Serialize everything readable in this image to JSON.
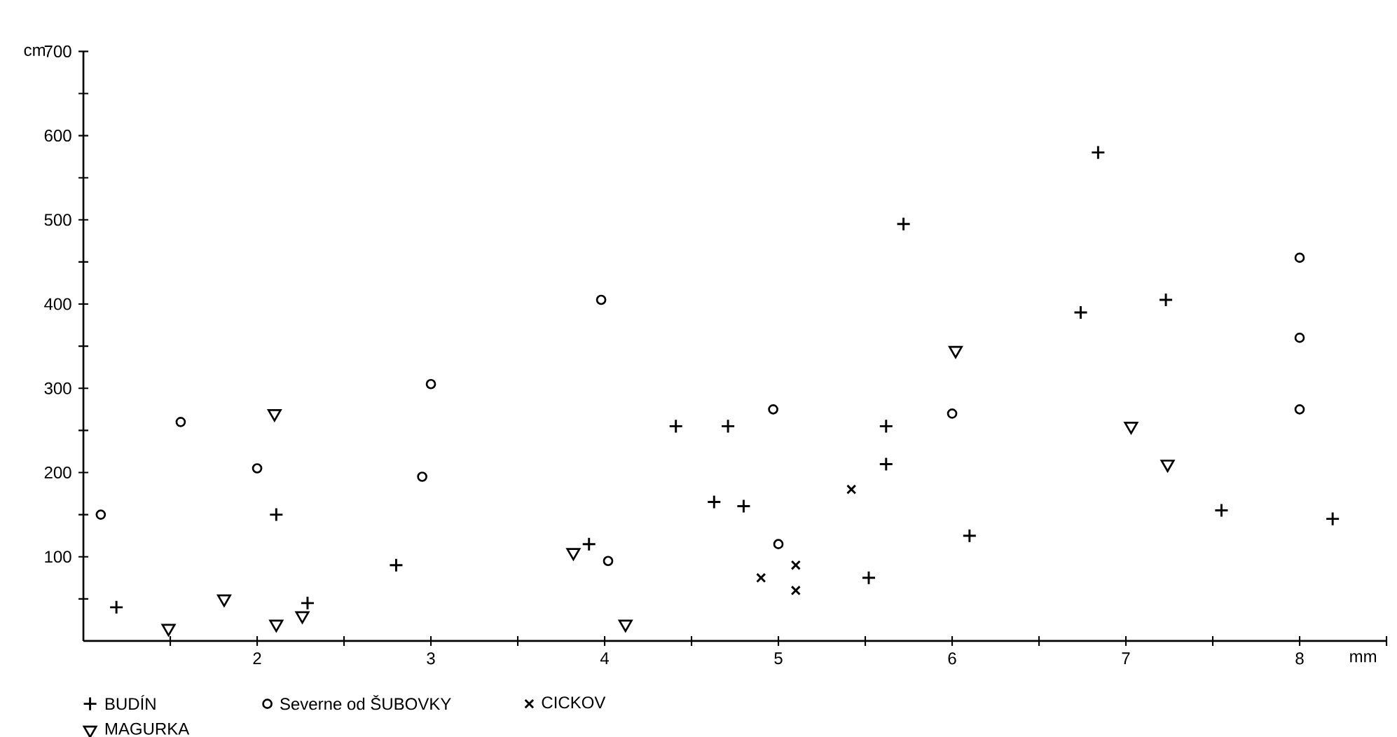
{
  "chart_data": {
    "type": "scatter",
    "xlabel": "mm",
    "ylabel": "cm",
    "xlim": [
      1,
      8.5
    ],
    "ylim": [
      0,
      700
    ],
    "xticks": [
      {
        "value": 1.5,
        "label": null
      },
      2,
      {
        "value": 2.5,
        "label": null
      },
      3,
      {
        "value": 3.5,
        "label": null
      },
      4,
      {
        "value": 4.5,
        "label": null
      },
      5,
      {
        "value": 5.5,
        "label": null
      },
      6,
      {
        "value": 6.5,
        "label": null
      },
      7,
      {
        "value": 7.5,
        "label": null
      },
      8,
      {
        "value": 8.5,
        "label": null
      }
    ],
    "yticks": [
      {
        "value": 50,
        "label": null
      },
      100,
      {
        "value": 150,
        "label": null
      },
      200,
      {
        "value": 250,
        "label": null
      },
      300,
      {
        "value": 350,
        "label": null
      },
      400,
      {
        "value": 450,
        "label": null
      },
      500,
      {
        "value": 550,
        "label": null
      },
      600,
      {
        "value": 650,
        "label": null
      },
      700
    ],
    "legend": "bottom",
    "series": [
      {
        "name": "BUDÍN",
        "color": "#000000",
        "marker": "cross",
        "x": [
          1.19,
          2.11,
          2.29,
          2.8,
          3.91,
          4.41,
          4.71,
          4.63,
          4.8,
          5.52,
          5.62,
          5.62,
          5.72,
          6.1,
          6.74,
          6.84,
          7.23,
          7.55,
          8.19
        ],
        "values": [
          40,
          150,
          45,
          90,
          115,
          255,
          255,
          165,
          160,
          75,
          255,
          210,
          495,
          125,
          390,
          580,
          405,
          155,
          145
        ]
      },
      {
        "name": "Severne od ŠUBOVKY",
        "color": "#000000",
        "marker": "circle",
        "x": [
          1.1,
          1.56,
          2.0,
          2.95,
          3.0,
          3.98,
          4.02,
          4.97,
          5.0,
          6.0,
          8.0,
          8.0,
          8.0
        ],
        "values": [
          150,
          260,
          205,
          195,
          305,
          405,
          95,
          275,
          115,
          270,
          455,
          360,
          275
        ]
      },
      {
        "name": "CICKOV",
        "color": "#000000",
        "marker": "x",
        "x": [
          4.9,
          5.1,
          5.1,
          5.42
        ],
        "values": [
          75,
          90,
          60,
          180
        ]
      },
      {
        "name": "MAGURKA",
        "color": "#000000",
        "marker": "triangle_down",
        "x": [
          1.49,
          1.81,
          2.1,
          2.11,
          2.26,
          3.82,
          4.12,
          6.02,
          7.03,
          7.24
        ],
        "values": [
          15,
          50,
          270,
          20,
          30,
          105,
          20,
          345,
          255,
          210
        ]
      }
    ]
  }
}
